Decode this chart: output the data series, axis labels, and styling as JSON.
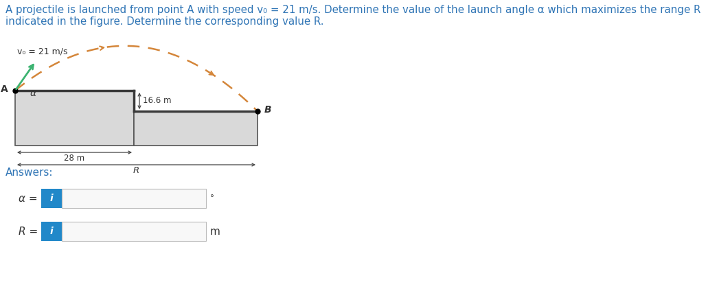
{
  "title_line1": "A projectile is launched from point A with speed v₀ = 21 m/s. Determine the value of the launch angle α which maximizes the range R",
  "title_line2": "indicated in the figure. Determine the corresponding value R.",
  "title_color": "#2e74b5",
  "background_color": "#ffffff",
  "v0_label": "v₀ = 21 m/s",
  "point_A_label": "A",
  "point_B_label": "B",
  "alpha_label": "α",
  "dim_28": "28 m",
  "dim_16_6": "16.6 m",
  "dim_R": "R",
  "traj_color": "#d4863a",
  "vel_arrow_color": "#3cb371",
  "struct_edge": "#555555",
  "struct_fill": "#d9d9d9",
  "dim_line_color": "#444444",
  "text_color": "#333333",
  "answers_label": "Answers:",
  "answers_color": "#2e74b5",
  "alpha_eq": "α =",
  "R_eq": "R =",
  "degree_symbol": "°",
  "m_label": "m",
  "input_box_blue": "#2188c9",
  "input_box_text": "i",
  "input_field_bg": "#f8f8f8",
  "input_field_border": "#bbbbbb",
  "fig_width": 10.47,
  "fig_height": 4.37,
  "dpi": 100
}
